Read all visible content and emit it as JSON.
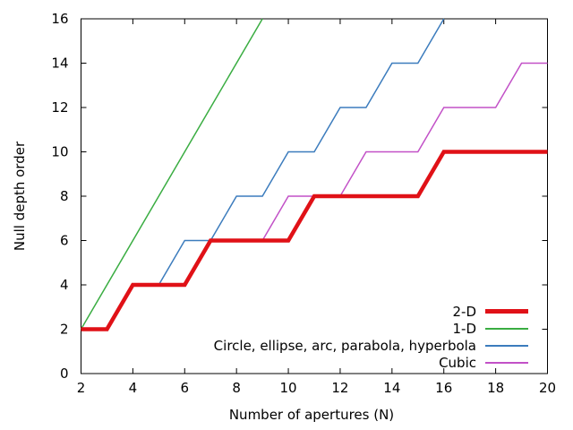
{
  "chart_data": {
    "type": "line",
    "title": "",
    "xlabel": "Number of apertures (N)",
    "ylabel": "Null depth order",
    "xlim": [
      2,
      20
    ],
    "ylim": [
      0,
      16
    ],
    "xticks": [
      2,
      4,
      6,
      8,
      10,
      12,
      14,
      16,
      18,
      20
    ],
    "yticks": [
      0,
      2,
      4,
      6,
      8,
      10,
      12,
      14,
      16
    ],
    "grid": false,
    "legend_position": "inside-bottom-right",
    "axis_color": "#000000",
    "series": [
      {
        "name": "2-D",
        "color": "#e01117",
        "line_width": 4.5,
        "x": [
          2,
          3,
          4,
          5,
          6,
          7,
          8,
          9,
          10,
          11,
          12,
          13,
          14,
          15,
          16,
          17,
          18,
          19,
          20
        ],
        "y": [
          2,
          2,
          4,
          4,
          4,
          6,
          6,
          6,
          6,
          8,
          8,
          8,
          8,
          8,
          10,
          10,
          10,
          10,
          10
        ]
      },
      {
        "name": "1-D",
        "color": "#3aad42",
        "line_width": 1.5,
        "x": [
          2,
          9
        ],
        "y": [
          2,
          16
        ]
      },
      {
        "name": "Circle, ellipse, arc, parabola, hyperbola",
        "color": "#3c7cbd",
        "line_width": 1.5,
        "x": [
          2,
          3,
          4,
          5,
          6,
          7,
          8,
          9,
          10,
          11,
          12,
          13,
          14,
          15,
          16
        ],
        "y": [
          2,
          2,
          4,
          4,
          6,
          6,
          8,
          8,
          10,
          10,
          12,
          12,
          14,
          14,
          16
        ]
      },
      {
        "name": "Cubic",
        "color": "#c251c7",
        "line_width": 1.5,
        "x": [
          2,
          3,
          4,
          5,
          6,
          7,
          8,
          9,
          10,
          11,
          12,
          13,
          14,
          15,
          16,
          17,
          18,
          19,
          20
        ],
        "y": [
          2,
          2,
          4,
          4,
          4,
          6,
          6,
          6,
          8,
          8,
          8,
          10,
          10,
          10,
          12,
          12,
          12,
          14,
          14
        ]
      }
    ],
    "draw_order": [
      1,
      2,
      3,
      0
    ]
  }
}
